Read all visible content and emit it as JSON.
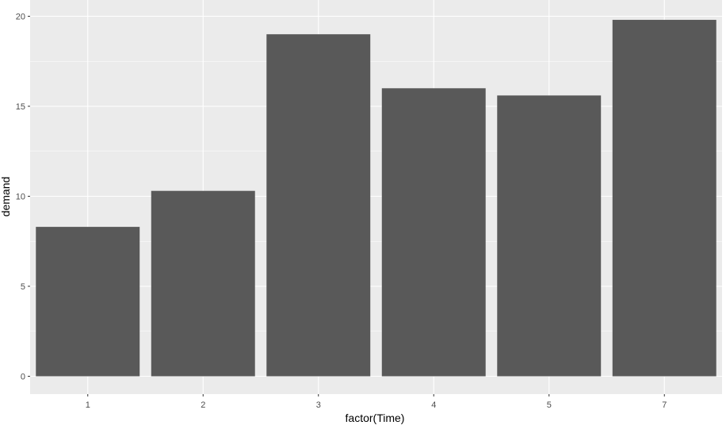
{
  "chart_data": {
    "type": "bar",
    "categories": [
      "1",
      "2",
      "3",
      "4",
      "5",
      "7"
    ],
    "values": [
      8.3,
      10.3,
      19.0,
      16.0,
      15.6,
      19.8
    ],
    "xlabel": "factor(Time)",
    "ylabel": "demand",
    "ylim": [
      0,
      20.8
    ],
    "yticks": [
      0,
      5,
      10,
      15,
      20
    ],
    "grid": true,
    "colors": {
      "panel_background": "#ebebeb",
      "grid_major": "#ffffff",
      "bar_fill": "#595959",
      "tick_text": "#4d4d4d",
      "title_text": "#000000"
    }
  }
}
